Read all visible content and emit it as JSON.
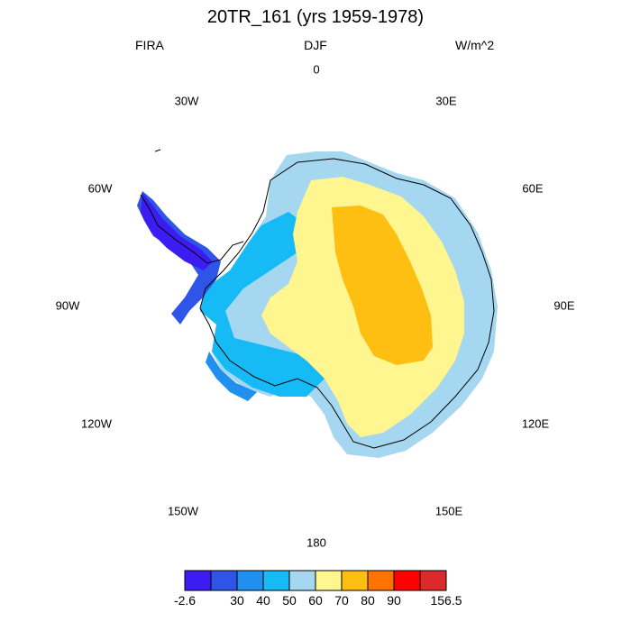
{
  "title": "20TR_161 (yrs 1959-1978)",
  "header": {
    "left": "FIRA",
    "center": "DJF",
    "right": "W/m^2"
  },
  "longitude_labels": {
    "top": "0",
    "top_left": "30W",
    "top_right": "30E",
    "upper_left": "60W",
    "upper_right": "60E",
    "left": "90W",
    "right": "90E",
    "lower_left": "120W",
    "lower_right": "120E",
    "bottom_left": "150W",
    "bottom_right": "150E",
    "bottom": "180"
  },
  "colorbar": {
    "colors": [
      "#3c1cf0",
      "#2f55e8",
      "#1f8ff0",
      "#16baf5",
      "#a6d7f0",
      "#fff68f",
      "#ffbe12",
      "#ff7400",
      "#ff0000",
      "#dc2a2a"
    ],
    "labels": [
      "-2.6",
      "30",
      "40",
      "50",
      "60",
      "70",
      "80",
      "90",
      "156.5"
    ]
  },
  "legend_tag": "FIRA"
}
